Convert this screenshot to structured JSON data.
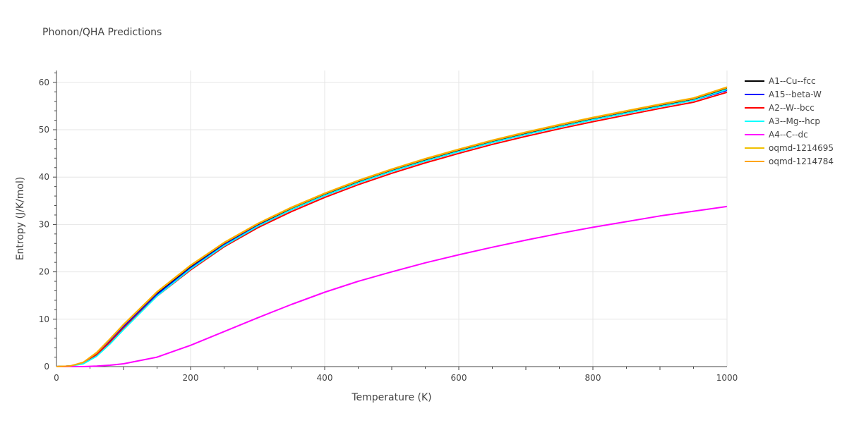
{
  "chart_data": {
    "type": "line",
    "title": "Phonon/QHA Predictions",
    "xlabel": "Temperature (K)",
    "ylabel": "Entropy (J/K/mol)",
    "xlim": [
      0,
      1000
    ],
    "ylim": [
      0,
      62.5
    ],
    "x_ticks": [
      0,
      200,
      400,
      600,
      800,
      1000
    ],
    "y_ticks": [
      0,
      10,
      20,
      30,
      40,
      50,
      60
    ],
    "grid": true,
    "legend_position": "right",
    "x": [
      0,
      20,
      40,
      60,
      80,
      100,
      150,
      200,
      250,
      300,
      350,
      400,
      450,
      500,
      550,
      600,
      650,
      700,
      750,
      800,
      850,
      900,
      950,
      1000
    ],
    "series": [
      {
        "name": "A1--Cu--fcc",
        "color": "#000000",
        "values": [
          0,
          0.1,
          0.8,
          2.8,
          5.6,
          8.6,
          15.4,
          21.0,
          25.8,
          29.8,
          33.2,
          36.2,
          38.9,
          41.3,
          43.5,
          45.5,
          47.4,
          49.1,
          50.7,
          52.2,
          53.6,
          55.0,
          56.3,
          58.6
        ]
      },
      {
        "name": "A15--beta-W",
        "color": "#0000ff",
        "values": [
          0,
          0.1,
          0.8,
          2.7,
          5.4,
          8.4,
          15.2,
          20.8,
          25.7,
          29.7,
          33.1,
          36.1,
          38.8,
          41.2,
          43.4,
          45.4,
          47.3,
          49.0,
          50.6,
          52.1,
          53.5,
          54.9,
          56.2,
          58.3
        ]
      },
      {
        "name": "A2--W--bcc",
        "color": "#ff0000",
        "values": [
          0,
          0.1,
          0.7,
          2.5,
          5.2,
          8.1,
          14.9,
          20.4,
          25.3,
          29.3,
          32.7,
          35.7,
          38.4,
          40.8,
          43.0,
          45.0,
          46.9,
          48.6,
          50.2,
          51.7,
          53.1,
          54.5,
          55.8,
          57.9
        ]
      },
      {
        "name": "A3--Mg--hcp",
        "color": "#00ffff",
        "values": [
          0,
          0.1,
          0.6,
          2.2,
          4.8,
          7.8,
          14.9,
          20.6,
          25.5,
          29.6,
          33.1,
          36.1,
          38.8,
          41.2,
          43.4,
          45.4,
          47.3,
          49.0,
          50.6,
          52.1,
          53.5,
          54.9,
          56.2,
          58.5
        ]
      },
      {
        "name": "A4--C--dc",
        "color": "#ff00ff",
        "values": [
          0,
          0,
          0,
          0.1,
          0.3,
          0.6,
          2.0,
          4.5,
          7.4,
          10.3,
          13.1,
          15.7,
          18.0,
          20.0,
          21.9,
          23.6,
          25.2,
          26.7,
          28.1,
          29.4,
          30.6,
          31.8,
          32.8,
          33.8
        ]
      },
      {
        "name": "oqmd-1214695",
        "color": "#f0c000",
        "values": [
          0,
          0.1,
          0.9,
          3.0,
          5.9,
          8.9,
          15.8,
          21.4,
          26.2,
          30.2,
          33.6,
          36.6,
          39.3,
          41.7,
          43.9,
          45.9,
          47.8,
          49.5,
          51.1,
          52.6,
          54.0,
          55.4,
          56.7,
          59.0
        ]
      },
      {
        "name": "oqmd-1214784",
        "color": "#ffa500",
        "values": [
          0,
          0.1,
          0.9,
          2.9,
          5.8,
          8.8,
          15.7,
          21.3,
          26.1,
          30.1,
          33.5,
          36.5,
          39.2,
          41.6,
          43.8,
          45.8,
          47.7,
          49.4,
          51.0,
          52.5,
          53.9,
          55.3,
          56.6,
          58.9
        ]
      }
    ]
  }
}
